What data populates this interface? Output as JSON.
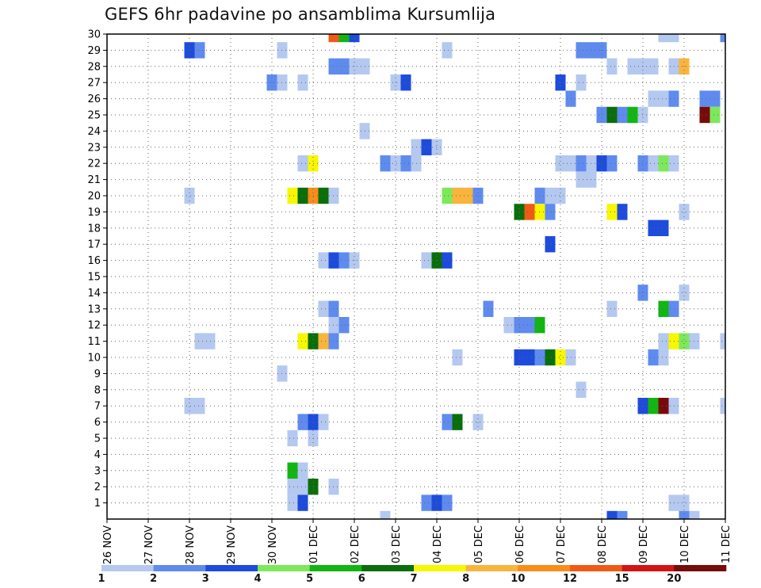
{
  "chart_data": {
    "type": "heatmap",
    "title": "GEFS 6hr padavine po ansamblima Kursumlija",
    "xlabel": "",
    "ylabel": "",
    "x_tick_labels": [
      "26 NOV",
      "27 NOV",
      "28 NOV",
      "29 NOV",
      "30 NOV",
      "01 DEC",
      "02 DEC",
      "03 DEC",
      "04 DEC",
      "05 DEC",
      "06 DEC",
      "07 DEC",
      "08 DEC",
      "09 DEC",
      "10 DEC",
      "11 DEC"
    ],
    "y_tick_labels": [
      "1",
      "2",
      "3",
      "4",
      "5",
      "6",
      "7",
      "8",
      "9",
      "10",
      "11",
      "12",
      "13",
      "14",
      "15",
      "16",
      "17",
      "18",
      "19",
      "20",
      "21",
      "22",
      "23",
      "24",
      "25",
      "26",
      "27",
      "28",
      "29",
      "30"
    ],
    "x_range_days": [
      0,
      15
    ],
    "y_range": [
      0,
      30
    ],
    "grid": true,
    "colorbar": {
      "levels": [
        "1",
        "2",
        "3",
        "4",
        "5",
        "6",
        "7",
        "8",
        "10",
        "12",
        "15",
        "20"
      ],
      "colors": [
        "#b4c8f0",
        "#5f8bef",
        "#1d4bdc",
        "#7de85a",
        "#12b512",
        "#0a6e0a",
        "#f7f700",
        "#f9b43c",
        "#f98c1a",
        "#ef5a14",
        "#d21414",
        "#780a0a"
      ]
    },
    "cells": [
      [
        5.5,
        30,
        10
      ],
      [
        5.75,
        30,
        5
      ],
      [
        6,
        30,
        3
      ],
      [
        13.5,
        30,
        1
      ],
      [
        13.75,
        30,
        1
      ],
      [
        15,
        30,
        2
      ],
      [
        2,
        29,
        3
      ],
      [
        2.25,
        29,
        2
      ],
      [
        4.25,
        29,
        1
      ],
      [
        8.25,
        29,
        1
      ],
      [
        11.5,
        29,
        2
      ],
      [
        11.75,
        29,
        2
      ],
      [
        12,
        29,
        2
      ],
      [
        5.5,
        28,
        2
      ],
      [
        5.75,
        28,
        2
      ],
      [
        6,
        28,
        1
      ],
      [
        6.25,
        28,
        1
      ],
      [
        12.25,
        28,
        1
      ],
      [
        12.75,
        28,
        1
      ],
      [
        13,
        28,
        1
      ],
      [
        13.25,
        28,
        1
      ],
      [
        13.75,
        28,
        1
      ],
      [
        14,
        28,
        8
      ],
      [
        4,
        27,
        2
      ],
      [
        4.25,
        27,
        1
      ],
      [
        4.75,
        27,
        1
      ],
      [
        7,
        27,
        1
      ],
      [
        7.25,
        27,
        3
      ],
      [
        11,
        27,
        3
      ],
      [
        11.5,
        27,
        1
      ],
      [
        11.25,
        26,
        2
      ],
      [
        13.25,
        26,
        1
      ],
      [
        13.5,
        26,
        1
      ],
      [
        13.75,
        26,
        2
      ],
      [
        14.5,
        26,
        2
      ],
      [
        14.75,
        26,
        2
      ],
      [
        12,
        25,
        2
      ],
      [
        12.25,
        25,
        6
      ],
      [
        12.5,
        25,
        2
      ],
      [
        12.75,
        25,
        5
      ],
      [
        13,
        25,
        1
      ],
      [
        14.5,
        25,
        12
      ],
      [
        14.75,
        25,
        4
      ],
      [
        6.25,
        24,
        1
      ],
      [
        7.5,
        23,
        1
      ],
      [
        7.75,
        23,
        3
      ],
      [
        8,
        23,
        1
      ],
      [
        4.75,
        22,
        1
      ],
      [
        5,
        22,
        7
      ],
      [
        6.75,
        22,
        2
      ],
      [
        7,
        22,
        1
      ],
      [
        7.25,
        22,
        2
      ],
      [
        7.5,
        22,
        1
      ],
      [
        11,
        22,
        1
      ],
      [
        11.25,
        22,
        1
      ],
      [
        11.5,
        22,
        2
      ],
      [
        11.75,
        22,
        1
      ],
      [
        12,
        22,
        3
      ],
      [
        12.25,
        22,
        2
      ],
      [
        13,
        22,
        2
      ],
      [
        13.25,
        22,
        1
      ],
      [
        13.5,
        22,
        4
      ],
      [
        13.75,
        22,
        1
      ],
      [
        11.5,
        21,
        1
      ],
      [
        11.75,
        21,
        1
      ],
      [
        2,
        20,
        1
      ],
      [
        4.5,
        20,
        7
      ],
      [
        4.75,
        20,
        6
      ],
      [
        5,
        20,
        9
      ],
      [
        5.25,
        20,
        6
      ],
      [
        5.5,
        20,
        1
      ],
      [
        8.25,
        20,
        4
      ],
      [
        8.5,
        20,
        8
      ],
      [
        8.75,
        20,
        8
      ],
      [
        9,
        20,
        2
      ],
      [
        10.5,
        20,
        2
      ],
      [
        10.75,
        20,
        1
      ],
      [
        11,
        20,
        1
      ],
      [
        10,
        19,
        6
      ],
      [
        10.25,
        19,
        10
      ],
      [
        10.5,
        19,
        7
      ],
      [
        10.75,
        19,
        2
      ],
      [
        12.25,
        19,
        7
      ],
      [
        12.5,
        19,
        3
      ],
      [
        14,
        19,
        1
      ],
      [
        13.25,
        18,
        3
      ],
      [
        13.5,
        18,
        3
      ],
      [
        10.75,
        17,
        3
      ],
      [
        5.25,
        16,
        1
      ],
      [
        5.5,
        16,
        3
      ],
      [
        5.75,
        16,
        2
      ],
      [
        6,
        16,
        1
      ],
      [
        7.75,
        16,
        1
      ],
      [
        8,
        16,
        6
      ],
      [
        8.25,
        16,
        3
      ],
      [
        13,
        14,
        2
      ],
      [
        14,
        14,
        1
      ],
      [
        5.25,
        13,
        1
      ],
      [
        5.5,
        13,
        2
      ],
      [
        9.25,
        13,
        2
      ],
      [
        12.25,
        13,
        1
      ],
      [
        13.5,
        13,
        5
      ],
      [
        13.75,
        13,
        2
      ],
      [
        5.5,
        12,
        1
      ],
      [
        5.75,
        12,
        2
      ],
      [
        9.75,
        12,
        1
      ],
      [
        10,
        12,
        2
      ],
      [
        10.25,
        12,
        2
      ],
      [
        10.5,
        12,
        5
      ],
      [
        2.25,
        11,
        1
      ],
      [
        2.5,
        11,
        1
      ],
      [
        4.75,
        11,
        7
      ],
      [
        5,
        11,
        6
      ],
      [
        5.25,
        11,
        8
      ],
      [
        5.5,
        11,
        2
      ],
      [
        13.5,
        11,
        1
      ],
      [
        13.75,
        11,
        7
      ],
      [
        14,
        11,
        4
      ],
      [
        14.25,
        11,
        1
      ],
      [
        15,
        11,
        1
      ],
      [
        8.5,
        10,
        1
      ],
      [
        10,
        10,
        3
      ],
      [
        10.25,
        10,
        3
      ],
      [
        10.5,
        10,
        2
      ],
      [
        10.75,
        10,
        6
      ],
      [
        11,
        10,
        7
      ],
      [
        11.25,
        10,
        1
      ],
      [
        13.25,
        10,
        2
      ],
      [
        13.5,
        10,
        1
      ],
      [
        4.25,
        9,
        1
      ],
      [
        11.5,
        8,
        1
      ],
      [
        2,
        7,
        1
      ],
      [
        2.25,
        7,
        1
      ],
      [
        13,
        7,
        3
      ],
      [
        13.25,
        7,
        5
      ],
      [
        13.5,
        7,
        12
      ],
      [
        13.75,
        7,
        1
      ],
      [
        15,
        7,
        1
      ],
      [
        4.75,
        6,
        2
      ],
      [
        5,
        6,
        3
      ],
      [
        5.25,
        6,
        1
      ],
      [
        8.25,
        6,
        2
      ],
      [
        8.5,
        6,
        6
      ],
      [
        9,
        6,
        1
      ],
      [
        4.5,
        5,
        1
      ],
      [
        5,
        5,
        1
      ],
      [
        4.5,
        3,
        5
      ],
      [
        4.75,
        3,
        1
      ],
      [
        4.5,
        2,
        1
      ],
      [
        4.75,
        2,
        1
      ],
      [
        5,
        2,
        6
      ],
      [
        5.5,
        2,
        1
      ],
      [
        4.5,
        1,
        1
      ],
      [
        4.75,
        1,
        3
      ],
      [
        7.75,
        1,
        2
      ],
      [
        8,
        1,
        3
      ],
      [
        8.25,
        1,
        2
      ],
      [
        13.75,
        1,
        1
      ],
      [
        14,
        1,
        1
      ],
      [
        6.75,
        0,
        1
      ],
      [
        12.25,
        0,
        3
      ],
      [
        12.5,
        0,
        2
      ],
      [
        14,
        0,
        2
      ],
      [
        14.25,
        0,
        1
      ]
    ]
  }
}
